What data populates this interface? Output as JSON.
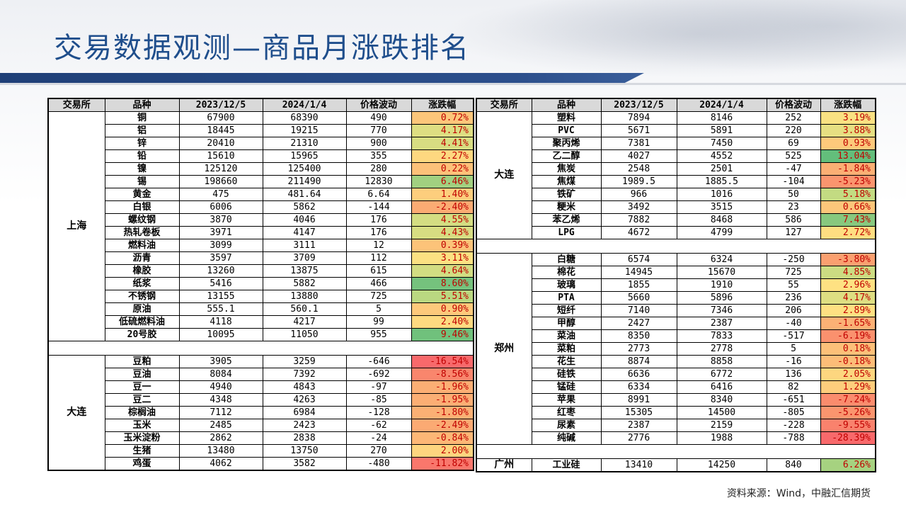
{
  "title": "交易数据观测—商品月涨跌排名",
  "source": "资料来源：Wind，中融汇信期货",
  "headers": [
    "交易所",
    "品种",
    "2023/12/5",
    "2024/1/4",
    "价格波动",
    "涨跌幅"
  ],
  "colors": {
    "title": "#1f4e8c",
    "band": "#1f3f77",
    "header_bg": "#d9d9d9"
  },
  "left": {
    "groups": [
      {
        "exchange": "上海",
        "rows": [
          [
            "铜",
            "67900",
            "68390",
            "490",
            "0.72%"
          ],
          [
            "铝",
            "18445",
            "19215",
            "770",
            "4.17%"
          ],
          [
            "锌",
            "20410",
            "21310",
            "900",
            "4.41%"
          ],
          [
            "铅",
            "15610",
            "15965",
            "355",
            "2.27%"
          ],
          [
            "镍",
            "125120",
            "125400",
            "280",
            "0.22%"
          ],
          [
            "锡",
            "198660",
            "211490",
            "12830",
            "6.46%"
          ],
          [
            "黄金",
            "475",
            "481.64",
            "6.64",
            "1.40%"
          ],
          [
            "白银",
            "6006",
            "5862",
            "-144",
            "-2.40%"
          ],
          [
            "螺纹钢",
            "3870",
            "4046",
            "176",
            "4.55%"
          ],
          [
            "热轧卷板",
            "3971",
            "4147",
            "176",
            "4.43%"
          ],
          [
            "燃料油",
            "3099",
            "3111",
            "12",
            "0.39%"
          ],
          [
            "沥青",
            "3597",
            "3709",
            "112",
            "3.11%"
          ],
          [
            "橡胶",
            "13260",
            "13875",
            "615",
            "4.64%"
          ],
          [
            "纸浆",
            "5416",
            "5882",
            "466",
            "8.60%"
          ],
          [
            "不锈钢",
            "13155",
            "13880",
            "725",
            "5.51%"
          ],
          [
            "原油",
            "555.1",
            "560.1",
            "5",
            "0.90%"
          ],
          [
            "低硫燃料油",
            "4118",
            "4217",
            "99",
            "2.40%"
          ],
          [
            "20号胶",
            "10095",
            "11050",
            "955",
            "9.46%"
          ]
        ]
      },
      {
        "exchange": "大连",
        "rows": [
          [
            "豆粕",
            "3905",
            "3259",
            "-646",
            "-16.54%"
          ],
          [
            "豆油",
            "8084",
            "7392",
            "-692",
            "-8.56%"
          ],
          [
            "豆一",
            "4940",
            "4843",
            "-97",
            "-1.96%"
          ],
          [
            "豆二",
            "4348",
            "4263",
            "-85",
            "-1.95%"
          ],
          [
            "棕榈油",
            "7112",
            "6984",
            "-128",
            "-1.80%"
          ],
          [
            "玉米",
            "2485",
            "2423",
            "-62",
            "-2.49%"
          ],
          [
            "玉米淀粉",
            "2862",
            "2838",
            "-24",
            "-0.84%"
          ],
          [
            "生猪",
            "13480",
            "13750",
            "270",
            "2.00%"
          ],
          [
            "鸡蛋",
            "4062",
            "3582",
            "-480",
            "-11.82%"
          ]
        ]
      }
    ]
  },
  "right": {
    "groups": [
      {
        "exchange": "大连",
        "rows": [
          [
            "塑料",
            "7894",
            "8146",
            "252",
            "3.19%"
          ],
          [
            "PVC",
            "5671",
            "5891",
            "220",
            "3.88%"
          ],
          [
            "聚丙烯",
            "7381",
            "7450",
            "69",
            "0.93%"
          ],
          [
            "乙二醇",
            "4027",
            "4552",
            "525",
            "13.04%"
          ],
          [
            "焦炭",
            "2548",
            "2501",
            "-47",
            "-1.84%"
          ],
          [
            "焦煤",
            "1989.5",
            "1885.5",
            "-104",
            "-5.23%"
          ],
          [
            "铁矿",
            "966",
            "1016",
            "50",
            "5.18%"
          ],
          [
            "粳米",
            "3492",
            "3515",
            "23",
            "0.66%"
          ],
          [
            "苯乙烯",
            "7882",
            "8468",
            "586",
            "7.43%"
          ],
          [
            "LPG",
            "4672",
            "4799",
            "127",
            "2.72%"
          ]
        ]
      },
      {
        "exchange": "郑州",
        "rows": [
          [
            "白糖",
            "6574",
            "6324",
            "-250",
            "-3.80%"
          ],
          [
            "棉花",
            "14945",
            "15670",
            "725",
            "4.85%"
          ],
          [
            "玻璃",
            "1855",
            "1910",
            "55",
            "2.96%"
          ],
          [
            "PTA",
            "5660",
            "5896",
            "236",
            "4.17%"
          ],
          [
            "短纤",
            "7140",
            "7346",
            "206",
            "2.89%"
          ],
          [
            "甲醇",
            "2427",
            "2387",
            "-40",
            "-1.65%"
          ],
          [
            "菜油",
            "8350",
            "7833",
            "-517",
            "-6.19%"
          ],
          [
            "菜粕",
            "2773",
            "2778",
            "5",
            "0.18%"
          ],
          [
            "花生",
            "8874",
            "8858",
            "-16",
            "-0.18%"
          ],
          [
            "硅铁",
            "6636",
            "6772",
            "136",
            "2.05%"
          ],
          [
            "锰硅",
            "6334",
            "6416",
            "82",
            "1.29%"
          ],
          [
            "苹果",
            "8991",
            "8340",
            "-651",
            "-7.24%"
          ],
          [
            "红枣",
            "15305",
            "14500",
            "-805",
            "-5.26%"
          ],
          [
            "尿素",
            "2387",
            "2159",
            "-228",
            "-9.55%"
          ],
          [
            "纯碱",
            "2776",
            "1988",
            "-788",
            "-28.39%"
          ]
        ]
      },
      {
        "exchange": "广州",
        "rows": [
          [
            "工业硅",
            "13410",
            "14250",
            "840",
            "6.26%"
          ]
        ]
      }
    ]
  }
}
